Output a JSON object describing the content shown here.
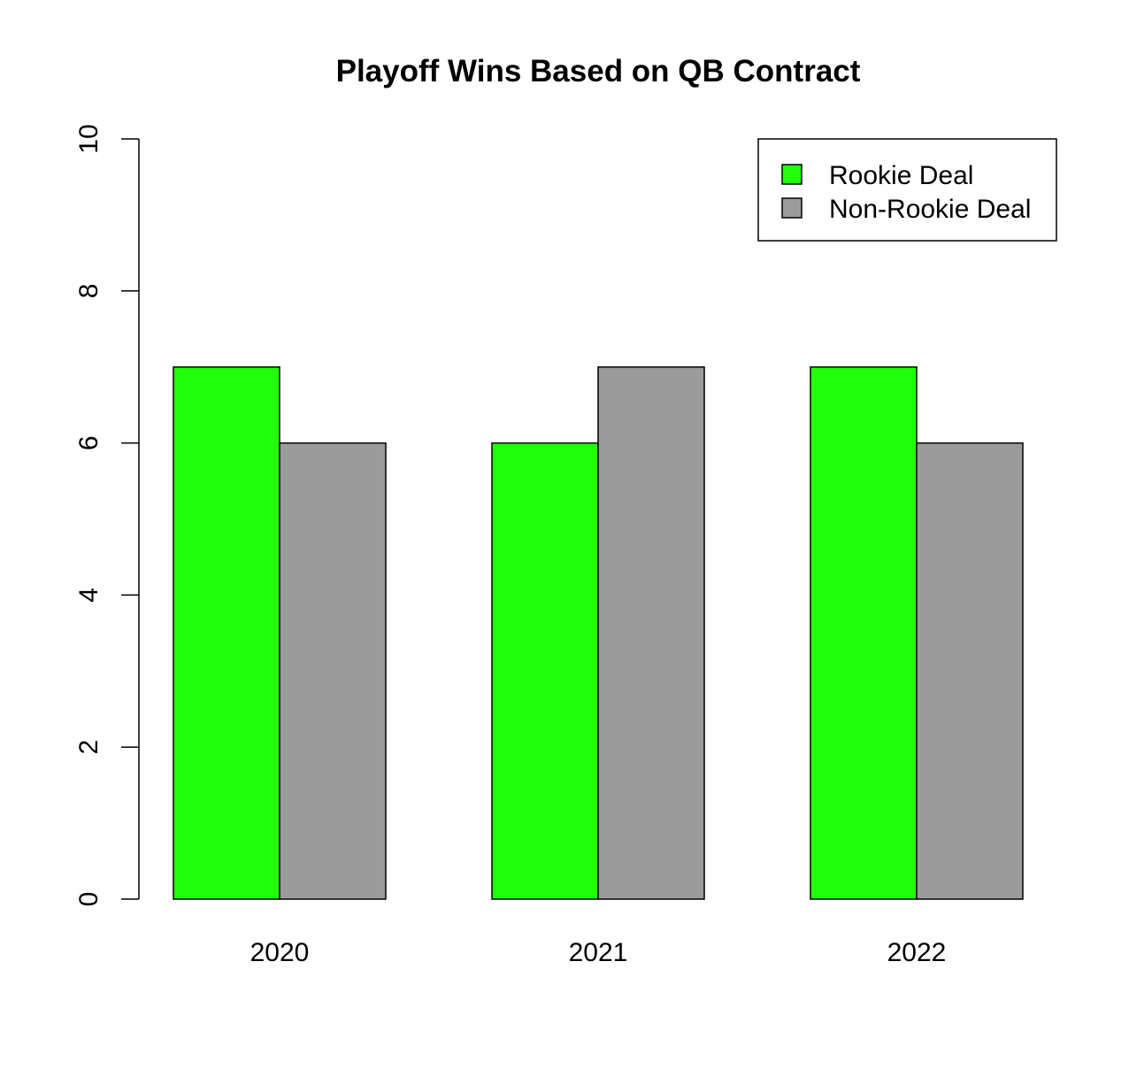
{
  "chart_data": {
    "type": "bar",
    "title": "Playoff Wins Based on QB Contract",
    "xlabel": "",
    "ylabel": "",
    "categories": [
      "2020",
      "2021",
      "2022"
    ],
    "series": [
      {
        "name": "Rookie Deal",
        "color": "#22ff0a",
        "values": [
          7,
          6,
          7
        ]
      },
      {
        "name": "Non-Rookie Deal",
        "color": "#9b9b9b",
        "values": [
          6,
          7,
          6
        ]
      }
    ],
    "ylim": [
      0,
      10
    ],
    "yticks": [
      "0",
      "2",
      "4",
      "6",
      "8",
      "10"
    ],
    "grid": false,
    "legend_position": "top-right",
    "bar_outline_color": "#000000"
  }
}
